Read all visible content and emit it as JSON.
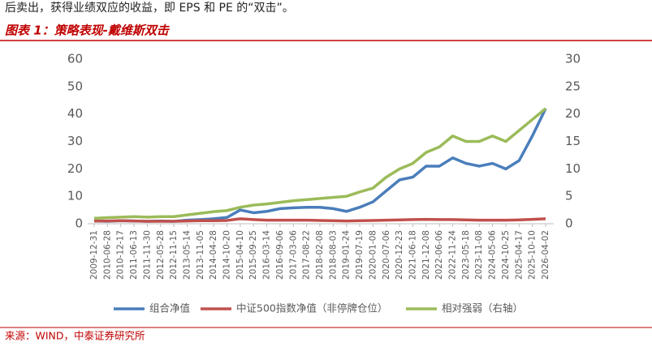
{
  "intro": "后卖出，获得业绩双应的收益，即 EPS 和 PE 的“双击”。",
  "source": "来源：WIND，中泰证券研究所",
  "chart_data": {
    "type": "line",
    "title": "图表 1：策略表现-戴维斯双击",
    "categories": [
      "2009-12-31",
      "2010-06-28",
      "2010-12-17",
      "2011-06-13",
      "2011-11-30",
      "2012-05-28",
      "2012-11-15",
      "2013-05-14",
      "2013-11-05",
      "2014-04-28",
      "2014-10-20",
      "2015-04-10",
      "2015-09-25",
      "2016-03-14",
      "2016-09-06",
      "2017-03-06",
      "2017-08-22",
      "2018-02-08",
      "2018-08-03",
      "2019-01-24",
      "2019-07-19",
      "2020-01-08",
      "2020-07-06",
      "2020-12-23",
      "2021-06-18",
      "2021-12-08",
      "2022-06-06",
      "2022-11-24",
      "2023-05-18",
      "2023-11-08",
      "2024-05-06",
      "2024-10-25",
      "2025-04-17",
      "2025-10-10",
      "2026-04-02"
    ],
    "series": [
      {
        "name": "组合净值",
        "color": "#4a7ebb",
        "values": [
          1,
          0.9,
          1.1,
          1,
          0.9,
          1,
          0.9,
          1.3,
          1.5,
          1.8,
          2.3,
          5,
          4,
          4.5,
          5.5,
          5.8,
          6,
          6,
          5.5,
          4.5,
          6,
          8,
          12,
          16,
          17,
          21,
          21,
          24,
          22,
          21,
          22,
          20,
          23,
          32,
          42
        ]
      },
      {
        "name": "中证500指数净值（非停牌仓位）",
        "color": "#c0504d",
        "values": [
          1,
          1,
          1.1,
          1,
          0.9,
          0.9,
          0.9,
          1,
          1.1,
          1.1,
          1.2,
          1.8,
          1.5,
          1.3,
          1.3,
          1.3,
          1.3,
          1.2,
          1.1,
          1,
          1.1,
          1.2,
          1.3,
          1.4,
          1.5,
          1.6,
          1.5,
          1.5,
          1.4,
          1.3,
          1.3,
          1.3,
          1.4,
          1.6,
          1.8
        ]
      },
      {
        "name": "相对强弱（右轴）",
        "color": "#9bbb59",
        "axis": "y2",
        "values": [
          1,
          1.1,
          1.2,
          1.3,
          1.2,
          1.3,
          1.3,
          1.6,
          1.9,
          2.2,
          2.4,
          3,
          3.4,
          3.6,
          3.9,
          4.2,
          4.4,
          4.6,
          4.8,
          5,
          5.8,
          6.5,
          8.5,
          10,
          11,
          13,
          14,
          16,
          15,
          15,
          16,
          15,
          17,
          19,
          21
        ]
      }
    ],
    "ylim": [
      0,
      60
    ],
    "yticks": [
      0,
      10,
      20,
      30,
      40,
      50,
      60
    ],
    "y2lim": [
      0,
      30
    ],
    "y2ticks": [
      0,
      5,
      10,
      15,
      20,
      25,
      30
    ],
    "grid": false,
    "legend": "bottom"
  }
}
